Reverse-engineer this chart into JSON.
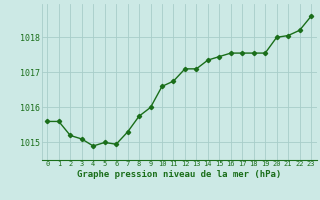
{
  "x": [
    0,
    1,
    2,
    3,
    4,
    5,
    6,
    7,
    8,
    9,
    10,
    11,
    12,
    13,
    14,
    15,
    16,
    17,
    18,
    19,
    20,
    21,
    22,
    23
  ],
  "y": [
    1015.6,
    1015.6,
    1015.2,
    1015.1,
    1014.9,
    1015.0,
    1014.95,
    1015.3,
    1015.75,
    1016.0,
    1016.6,
    1016.75,
    1017.1,
    1017.1,
    1017.35,
    1017.45,
    1017.55,
    1017.55,
    1017.55,
    1017.55,
    1018.0,
    1018.05,
    1018.2,
    1018.6
  ],
  "line_color": "#1a6e1a",
  "marker": "D",
  "marker_size": 2.2,
  "bg_color": "#cce9e5",
  "grid_color": "#a8cdc9",
  "tick_label_color": "#1a6e1a",
  "xlabel": "Graphe pression niveau de la mer (hPa)",
  "xlabel_color": "#1a6e1a",
  "xlabel_fontsize": 6.5,
  "ytick_labels": [
    "1015",
    "1016",
    "1017",
    "1018"
  ],
  "ytick_values": [
    1015,
    1016,
    1017,
    1018
  ],
  "ylim": [
    1014.5,
    1018.95
  ],
  "xlim": [
    -0.5,
    23.5
  ],
  "xtick_fontsize": 5.0,
  "ytick_fontsize": 6.0,
  "line_width": 1.0
}
